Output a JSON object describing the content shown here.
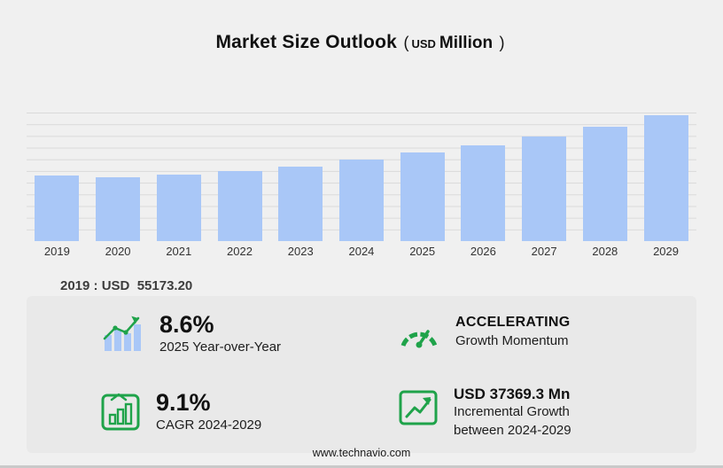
{
  "title": {
    "main": "Market Size Outlook",
    "open_paren": "(",
    "currency": "USD",
    "unit": "Million",
    "close_paren": ")"
  },
  "chart_data": {
    "type": "bar",
    "title": "Market Size Outlook (USD Million)",
    "categories": [
      "2019",
      "2020",
      "2021",
      "2022",
      "2023",
      "2024",
      "2025",
      "2026",
      "2027",
      "2028",
      "2029"
    ],
    "values": [
      55173.2,
      53800,
      55900,
      58900,
      62600,
      68470,
      74360,
      80600,
      87900,
      96300,
      105840
    ],
    "xlabel": "",
    "ylabel": "USD Million",
    "ylim": [
      0,
      108000
    ],
    "grid": true,
    "legend": false,
    "bar_color": "#a9c7f7"
  },
  "annotation": {
    "year": "2019",
    "currency": "USD",
    "value": "55173.20",
    "full": "2019 : USD  55173.20"
  },
  "stats": {
    "yoy": {
      "icon": "bar-chart-growth-arrow",
      "value": "8.6%",
      "label": "2025 Year-over-Year"
    },
    "momentum": {
      "icon": "speedometer",
      "value": "ACCELERATING",
      "label": "Growth Momentum"
    },
    "cagr": {
      "icon": "framed-bar-chart",
      "value": "9.1%",
      "label": "CAGR 2024-2029"
    },
    "incremental": {
      "icon": "framed-line-chart-arrow",
      "value": "USD 37369.3 Mn",
      "label_line1": "Incremental Growth",
      "label_line2": "between 2024-2029"
    }
  },
  "footer": {
    "url": "www.technavio.com"
  },
  "colors": {
    "page_bg": "#f0f0f0",
    "panel_bg": "#e9e9e9",
    "bar": "#a9c7f7",
    "accent_green": "#1fa34a"
  }
}
